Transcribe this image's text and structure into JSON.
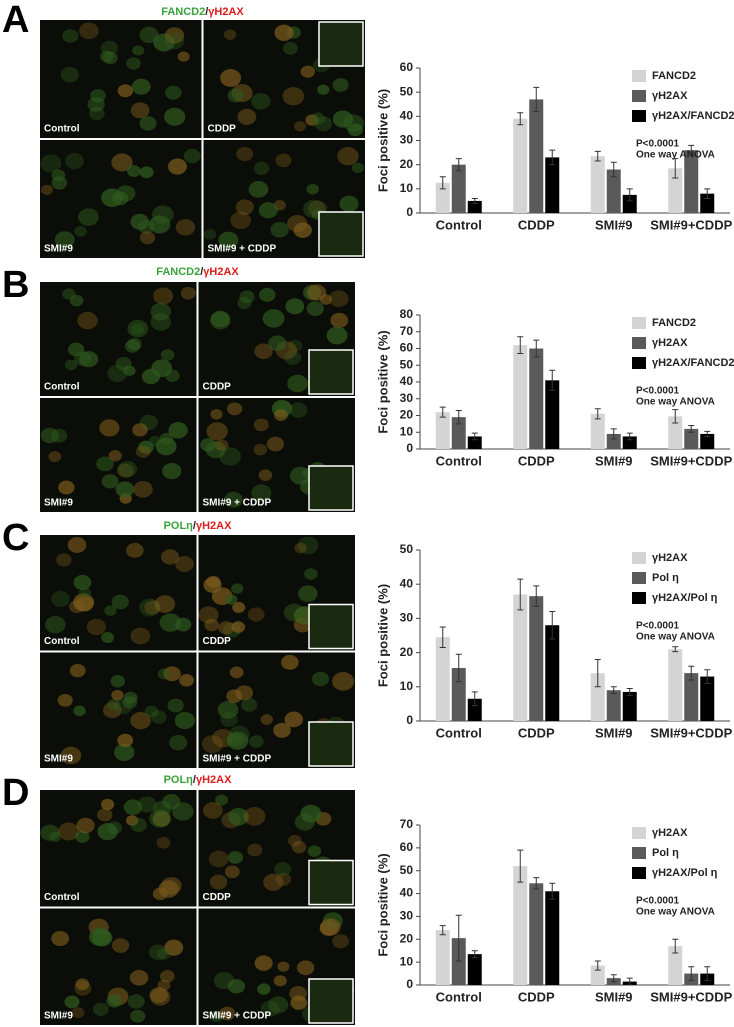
{
  "panels": [
    {
      "letter": "A",
      "image_title": [
        "FANCD2",
        "/",
        "γH2AX"
      ],
      "image_title_colors": [
        "#3aa23a",
        "#222222",
        "#e01b1b"
      ],
      "image_labels": [
        "Control",
        "CDDP",
        "SMI#9",
        "SMI#9 + CDDP"
      ]
    },
    {
      "letter": "B",
      "image_title": [
        "FANCD2",
        "/",
        "γH2AX"
      ],
      "image_title_colors": [
        "#3aa23a",
        "#222222",
        "#e01b1b"
      ],
      "image_labels": [
        "Control",
        "CDDP",
        "SMI#9",
        "SMI#9 + CDDP"
      ]
    },
    {
      "letter": "C",
      "image_title": [
        "POLη",
        "/",
        "γH2AX"
      ],
      "image_title_colors": [
        "#3aa23a",
        "#222222",
        "#e01b1b"
      ],
      "image_labels": [
        "Control",
        "CDDP",
        "SMI#9",
        "SMI#9 + CDDP"
      ]
    },
    {
      "letter": "D",
      "image_title": [
        "POLη",
        "/",
        "γH2AX"
      ],
      "image_title_colors": [
        "#3aa23a",
        "#222222",
        "#e01b1b"
      ],
      "image_labels": [
        "Control",
        "CDDP",
        "SMI#9",
        "SMI#9 + CDDP"
      ]
    }
  ],
  "chart_data": [
    {
      "type": "bar",
      "y_label": "Foci positive  (%)",
      "annotation": [
        "P<0.0001",
        "One way ANOVA"
      ],
      "categories": [
        "Control",
        "CDDP",
        "SMI#9",
        "SMI#9+CDDP"
      ],
      "ylim": [
        0,
        60
      ],
      "yticks": [
        0,
        10,
        20,
        30,
        40,
        50,
        60
      ],
      "series": [
        {
          "name": "FANCD2",
          "color": "#d4d4d4",
          "values": [
            12.5,
            39,
            23.5,
            18.5
          ],
          "errors": [
            2.5,
            2.5,
            2,
            4
          ]
        },
        {
          "name": "γH2AX",
          "color": "#5a5a5a",
          "values": [
            20,
            47,
            18,
            26
          ],
          "errors": [
            2.5,
            5,
            3,
            2
          ]
        },
        {
          "name": "γH2AX/FANCD2",
          "color": "#000000",
          "values": [
            5,
            23,
            7.5,
            8
          ],
          "errors": [
            1,
            3,
            2.5,
            2
          ]
        }
      ]
    },
    {
      "type": "bar",
      "y_label": "Foci positive  (%)",
      "annotation": [
        "P<0.0001",
        "One way ANOVA"
      ],
      "categories": [
        "Control",
        "CDDP",
        "SMI#9",
        "SMI#9+CDDP"
      ],
      "ylim": [
        0,
        80
      ],
      "yticks": [
        0,
        10,
        20,
        30,
        40,
        50,
        60,
        70,
        80
      ],
      "series": [
        {
          "name": "FANCD2",
          "color": "#d4d4d4",
          "values": [
            22,
            62,
            21,
            19.5
          ],
          "errors": [
            3,
            5,
            3,
            4
          ]
        },
        {
          "name": "γH2AX",
          "color": "#5a5a5a",
          "values": [
            19,
            60,
            9,
            12
          ],
          "errors": [
            4,
            5,
            3,
            2
          ]
        },
        {
          "name": "γH2AX/FANCD2",
          "color": "#000000",
          "values": [
            7.5,
            41,
            7.5,
            9
          ],
          "errors": [
            2,
            6,
            2,
            1.5
          ]
        }
      ]
    },
    {
      "type": "bar",
      "y_label": "Foci positive  (%)",
      "annotation": [
        "P<0.0001",
        "One way ANOVA"
      ],
      "categories": [
        "Control",
        "CDDP",
        "SMI#9",
        "SMI#9+CDDP"
      ],
      "ylim": [
        0,
        50
      ],
      "yticks": [
        0,
        10,
        20,
        30,
        40,
        50
      ],
      "series": [
        {
          "name": "γH2AX",
          "color": "#d4d4d4",
          "values": [
            24.5,
            37,
            14,
            21
          ],
          "errors": [
            3,
            4.5,
            4,
            0.7
          ]
        },
        {
          "name": "Pol η",
          "color": "#5a5a5a",
          "values": [
            15.5,
            36.5,
            9,
            14
          ],
          "errors": [
            4,
            3,
            1,
            2
          ]
        },
        {
          "name": "γH2AX/Pol η",
          "color": "#000000",
          "values": [
            6.5,
            28,
            8.5,
            13
          ],
          "errors": [
            2,
            4,
            1,
            2
          ]
        }
      ]
    },
    {
      "type": "bar",
      "y_label": "Foci positive  (%)",
      "annotation": [
        "P<0.0001",
        "One way ANOVA"
      ],
      "categories": [
        "Control",
        "CDDP",
        "SMI#9",
        "SMI#9+CDDP"
      ],
      "ylim": [
        0,
        70
      ],
      "yticks": [
        0,
        10,
        20,
        30,
        40,
        50,
        60,
        70
      ],
      "series": [
        {
          "name": "γH2AX",
          "color": "#d4d4d4",
          "values": [
            24,
            52,
            8.5,
            17
          ],
          "errors": [
            2,
            7,
            2,
            3
          ]
        },
        {
          "name": "Pol η",
          "color": "#5a5a5a",
          "values": [
            20.5,
            44.5,
            3,
            5
          ],
          "errors": [
            10,
            2.5,
            1.5,
            3
          ]
        },
        {
          "name": "γH2AX/Pol η",
          "color": "#000000",
          "values": [
            13.5,
            41,
            1.5,
            5
          ],
          "errors": [
            1.5,
            3.5,
            1.5,
            3
          ]
        }
      ]
    }
  ]
}
